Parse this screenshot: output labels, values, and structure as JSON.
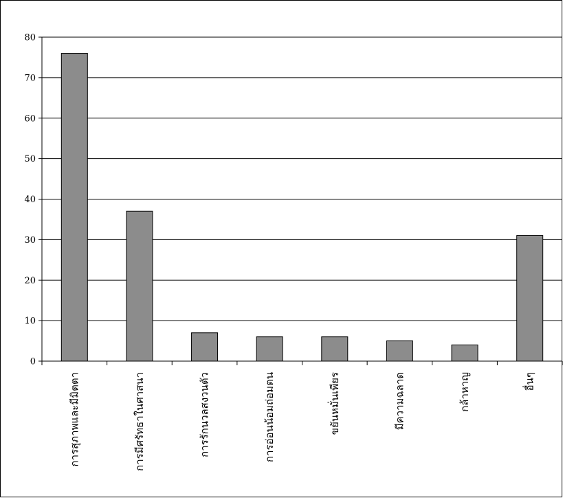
{
  "chart_data": {
    "type": "bar",
    "categories": [
      "การสุภาพและมีมิตตา",
      "การมีศรัทธาในศาสนา",
      "การรักนวลสงวนตัว",
      "การอ่อนน้อมถ่อมตน",
      "ขยันหมั่นเพียร",
      "มีความฉลาด",
      "กล้าหาญ",
      "อื่นๆ"
    ],
    "values": [
      76,
      37,
      7,
      6,
      6,
      5,
      4,
      31
    ],
    "title": "",
    "xlabel": "",
    "ylabel": "",
    "ylim": [
      0,
      80
    ],
    "yticks": [
      0,
      10,
      20,
      30,
      40,
      50,
      60,
      70,
      80
    ],
    "grid": true,
    "legend": "none",
    "bar_color": "#8c8c8c",
    "bar_edge_color": "#000000"
  }
}
